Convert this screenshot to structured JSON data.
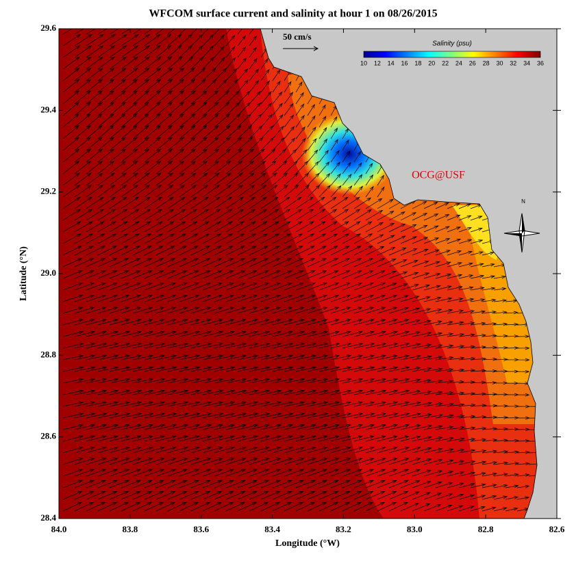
{
  "chart_data": {
    "type": "map",
    "title": "WFCOM surface current and salinity at hour 1 on 08/26/2015",
    "xlabel": "Longitude (°W)",
    "ylabel": "Latitude (°N)",
    "xlim": [
      84.0,
      82.6
    ],
    "xticks": [
      {
        "value": 84,
        "label": "84.0"
      },
      83.8,
      83.6,
      83.4,
      83.2,
      {
        "value": 83,
        "label": "83.0"
      },
      82.8,
      82.6
    ],
    "ylim": [
      28.4,
      29.6
    ],
    "yticks": [
      28.4,
      28.6,
      28.8,
      {
        "value": 29,
        "label": "29.0"
      },
      29.2,
      29.4,
      29.6
    ],
    "colorbar": {
      "title": "Salinity (psu)",
      "lim": [
        10,
        36
      ],
      "ticks": [
        10,
        12,
        14,
        16,
        18,
        20,
        22,
        24,
        26,
        28,
        30,
        32,
        34,
        36
      ]
    },
    "scale_label": "50 cm/s",
    "annotations": [
      "OCG@USF",
      "N"
    ]
  }
}
